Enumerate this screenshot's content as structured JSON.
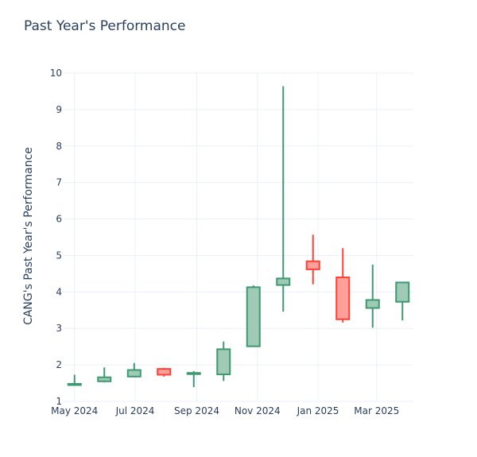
{
  "chart_data": {
    "type": "candlestick",
    "title": "Past Year's Performance",
    "ylabel": "CANG's Past Year's Performance",
    "xlabel": "",
    "ylim": [
      1,
      10
    ],
    "yticks": [
      1,
      2,
      3,
      4,
      5,
      6,
      7,
      8,
      9,
      10
    ],
    "xticks": [
      {
        "label": "May 2024",
        "date": "2024-05-01"
      },
      {
        "label": "Jul 2024",
        "date": "2024-07-01"
      },
      {
        "label": "Sep 2024",
        "date": "2024-09-01"
      },
      {
        "label": "Nov 2024",
        "date": "2024-11-01"
      },
      {
        "label": "Jan 2025",
        "date": "2025-01-01"
      },
      {
        "label": "Mar 2025",
        "date": "2025-03-01"
      }
    ],
    "colors": {
      "increasing_line": "#3d9970",
      "increasing_fill": "#9ecab6",
      "decreasing_line": "#ff4136",
      "decreasing_fill": "#ff9f9a"
    },
    "candles": [
      {
        "date": "2024-05-01",
        "open": 1.47,
        "high": 1.73,
        "low": 1.46,
        "close": 1.48
      },
      {
        "date": "2024-05-31",
        "open": 1.55,
        "high": 1.93,
        "low": 1.52,
        "close": 1.66
      },
      {
        "date": "2024-06-30",
        "open": 1.68,
        "high": 2.05,
        "low": 1.66,
        "close": 1.86
      },
      {
        "date": "2024-07-30",
        "open": 1.89,
        "high": 1.92,
        "low": 1.68,
        "close": 1.73
      },
      {
        "date": "2024-08-29",
        "open": 1.75,
        "high": 1.83,
        "low": 1.39,
        "close": 1.78
      },
      {
        "date": "2024-09-28",
        "open": 1.74,
        "high": 2.64,
        "low": 1.56,
        "close": 2.43
      },
      {
        "date": "2024-10-28",
        "open": 2.51,
        "high": 4.18,
        "low": 2.51,
        "close": 4.13
      },
      {
        "date": "2024-11-27",
        "open": 4.19,
        "high": 9.64,
        "low": 3.46,
        "close": 4.37
      },
      {
        "date": "2024-12-27",
        "open": 4.84,
        "high": 5.57,
        "low": 4.21,
        "close": 4.62
      },
      {
        "date": "2025-01-26",
        "open": 4.4,
        "high": 5.2,
        "low": 3.16,
        "close": 3.25
      },
      {
        "date": "2025-02-25",
        "open": 3.56,
        "high": 4.75,
        "low": 3.02,
        "close": 3.78
      },
      {
        "date": "2025-03-27",
        "open": 3.73,
        "high": 4.27,
        "low": 3.22,
        "close": 4.26
      }
    ]
  }
}
